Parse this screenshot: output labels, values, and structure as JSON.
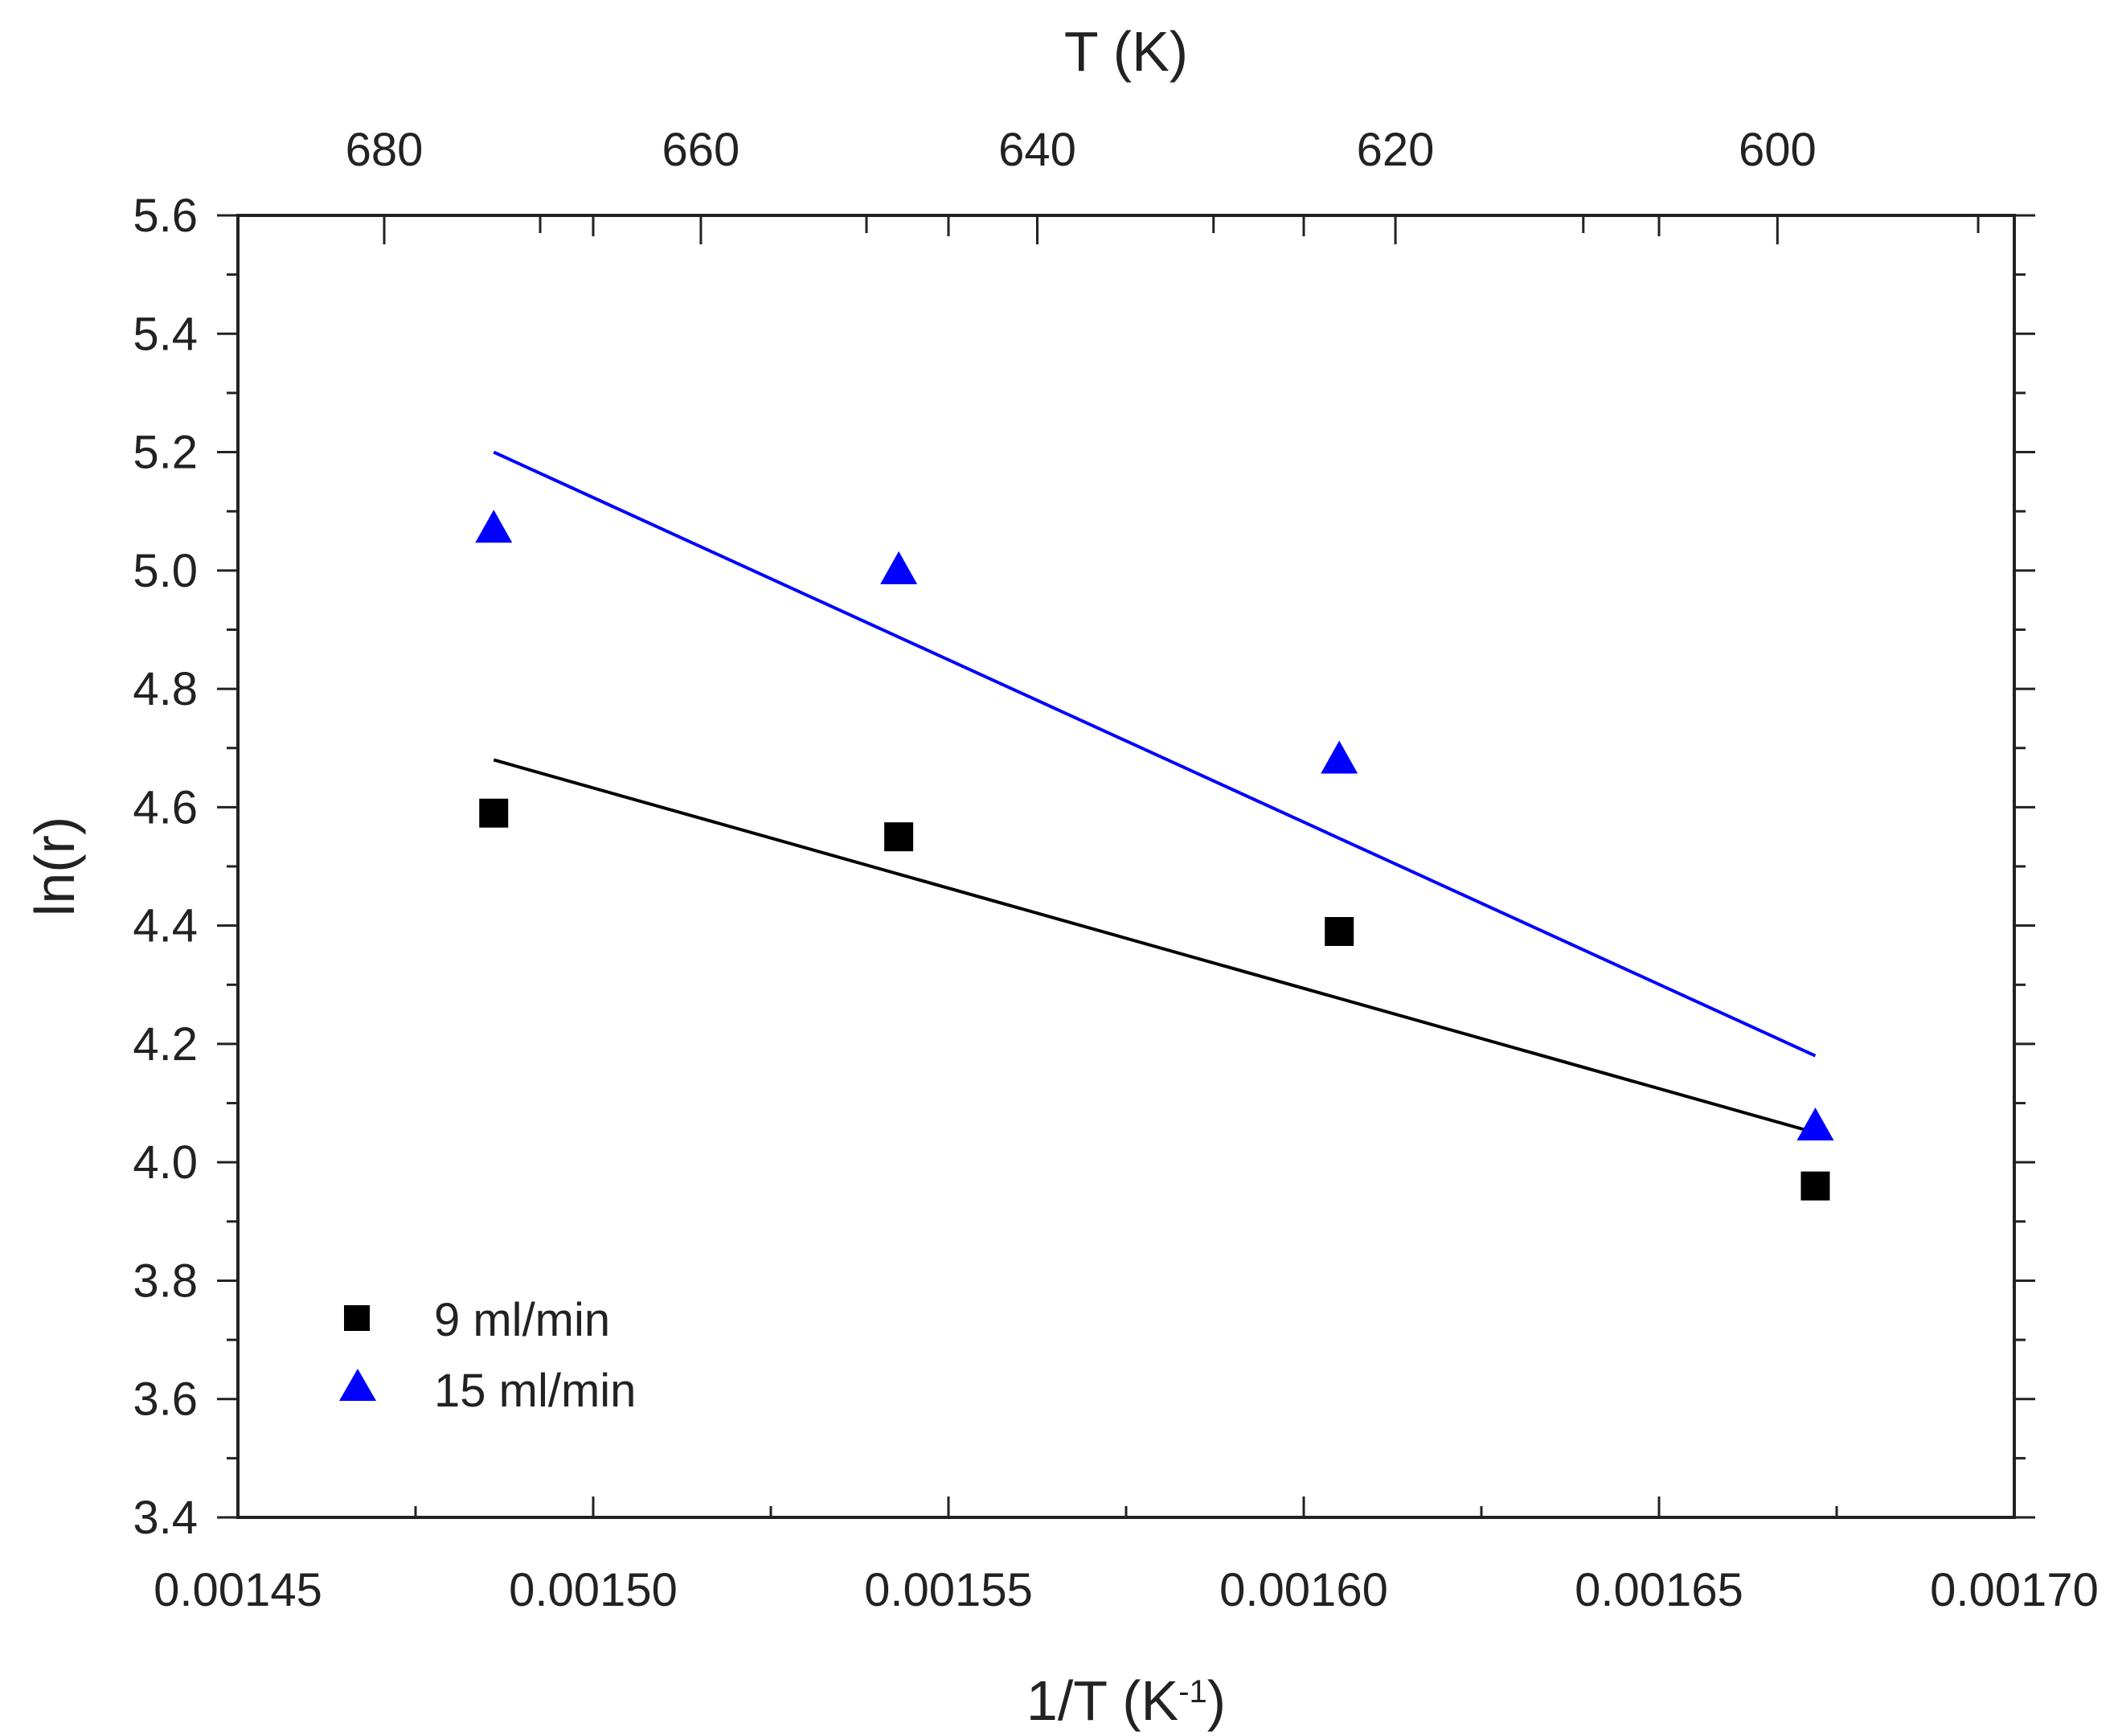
{
  "chart_data": {
    "type": "scatter",
    "title": "",
    "xlabel": {
      "main": "1/T (K",
      "sup": "-1",
      "tail": ")"
    },
    "ylabel": "ln(r)",
    "top_xlabel": "T (K)",
    "xlim": [
      0.00145,
      0.0017
    ],
    "ylim": [
      3.4,
      5.6
    ],
    "x_ticks": [
      0.00145,
      0.0015,
      0.00155,
      0.0016,
      0.00165,
      0.0017
    ],
    "x_tick_labels": [
      "0.00145",
      "0.00150",
      "0.00155",
      "0.00160",
      "0.00165",
      "0.00170"
    ],
    "y_ticks": [
      3.4,
      3.6,
      3.8,
      4.0,
      4.2,
      4.4,
      4.6,
      4.8,
      5.0,
      5.2,
      5.4,
      5.6
    ],
    "y_tick_labels": [
      "3.4",
      "3.6",
      "3.8",
      "4.0",
      "4.2",
      "4.4",
      "4.6",
      "4.8",
      "5.0",
      "5.2",
      "5.4",
      "5.6"
    ],
    "top_ticks": [
      680,
      660,
      640,
      620,
      600
    ],
    "top_tick_labels": [
      "680",
      "660",
      "640",
      "620",
      "600"
    ],
    "grid": false,
    "legend_position": "bottom-left",
    "series": [
      {
        "name": "9 ml/min",
        "marker": "square",
        "color": "#000000",
        "x": [
          0.001486,
          0.001543,
          0.001605,
          0.001672
        ],
        "y": [
          4.59,
          4.55,
          4.39,
          3.96
        ],
        "fit": {
          "x": [
            0.001486,
            0.001672
          ],
          "y": [
            4.68,
            4.05
          ]
        }
      },
      {
        "name": "15 ml/min",
        "marker": "triangle",
        "color": "#0000ff",
        "x": [
          0.001486,
          0.001543,
          0.001605,
          0.001672
        ],
        "y": [
          5.07,
          5.0,
          4.68,
          4.06
        ],
        "fit": {
          "x": [
            0.001486,
            0.001672
          ],
          "y": [
            5.2,
            4.18
          ]
        }
      }
    ]
  }
}
